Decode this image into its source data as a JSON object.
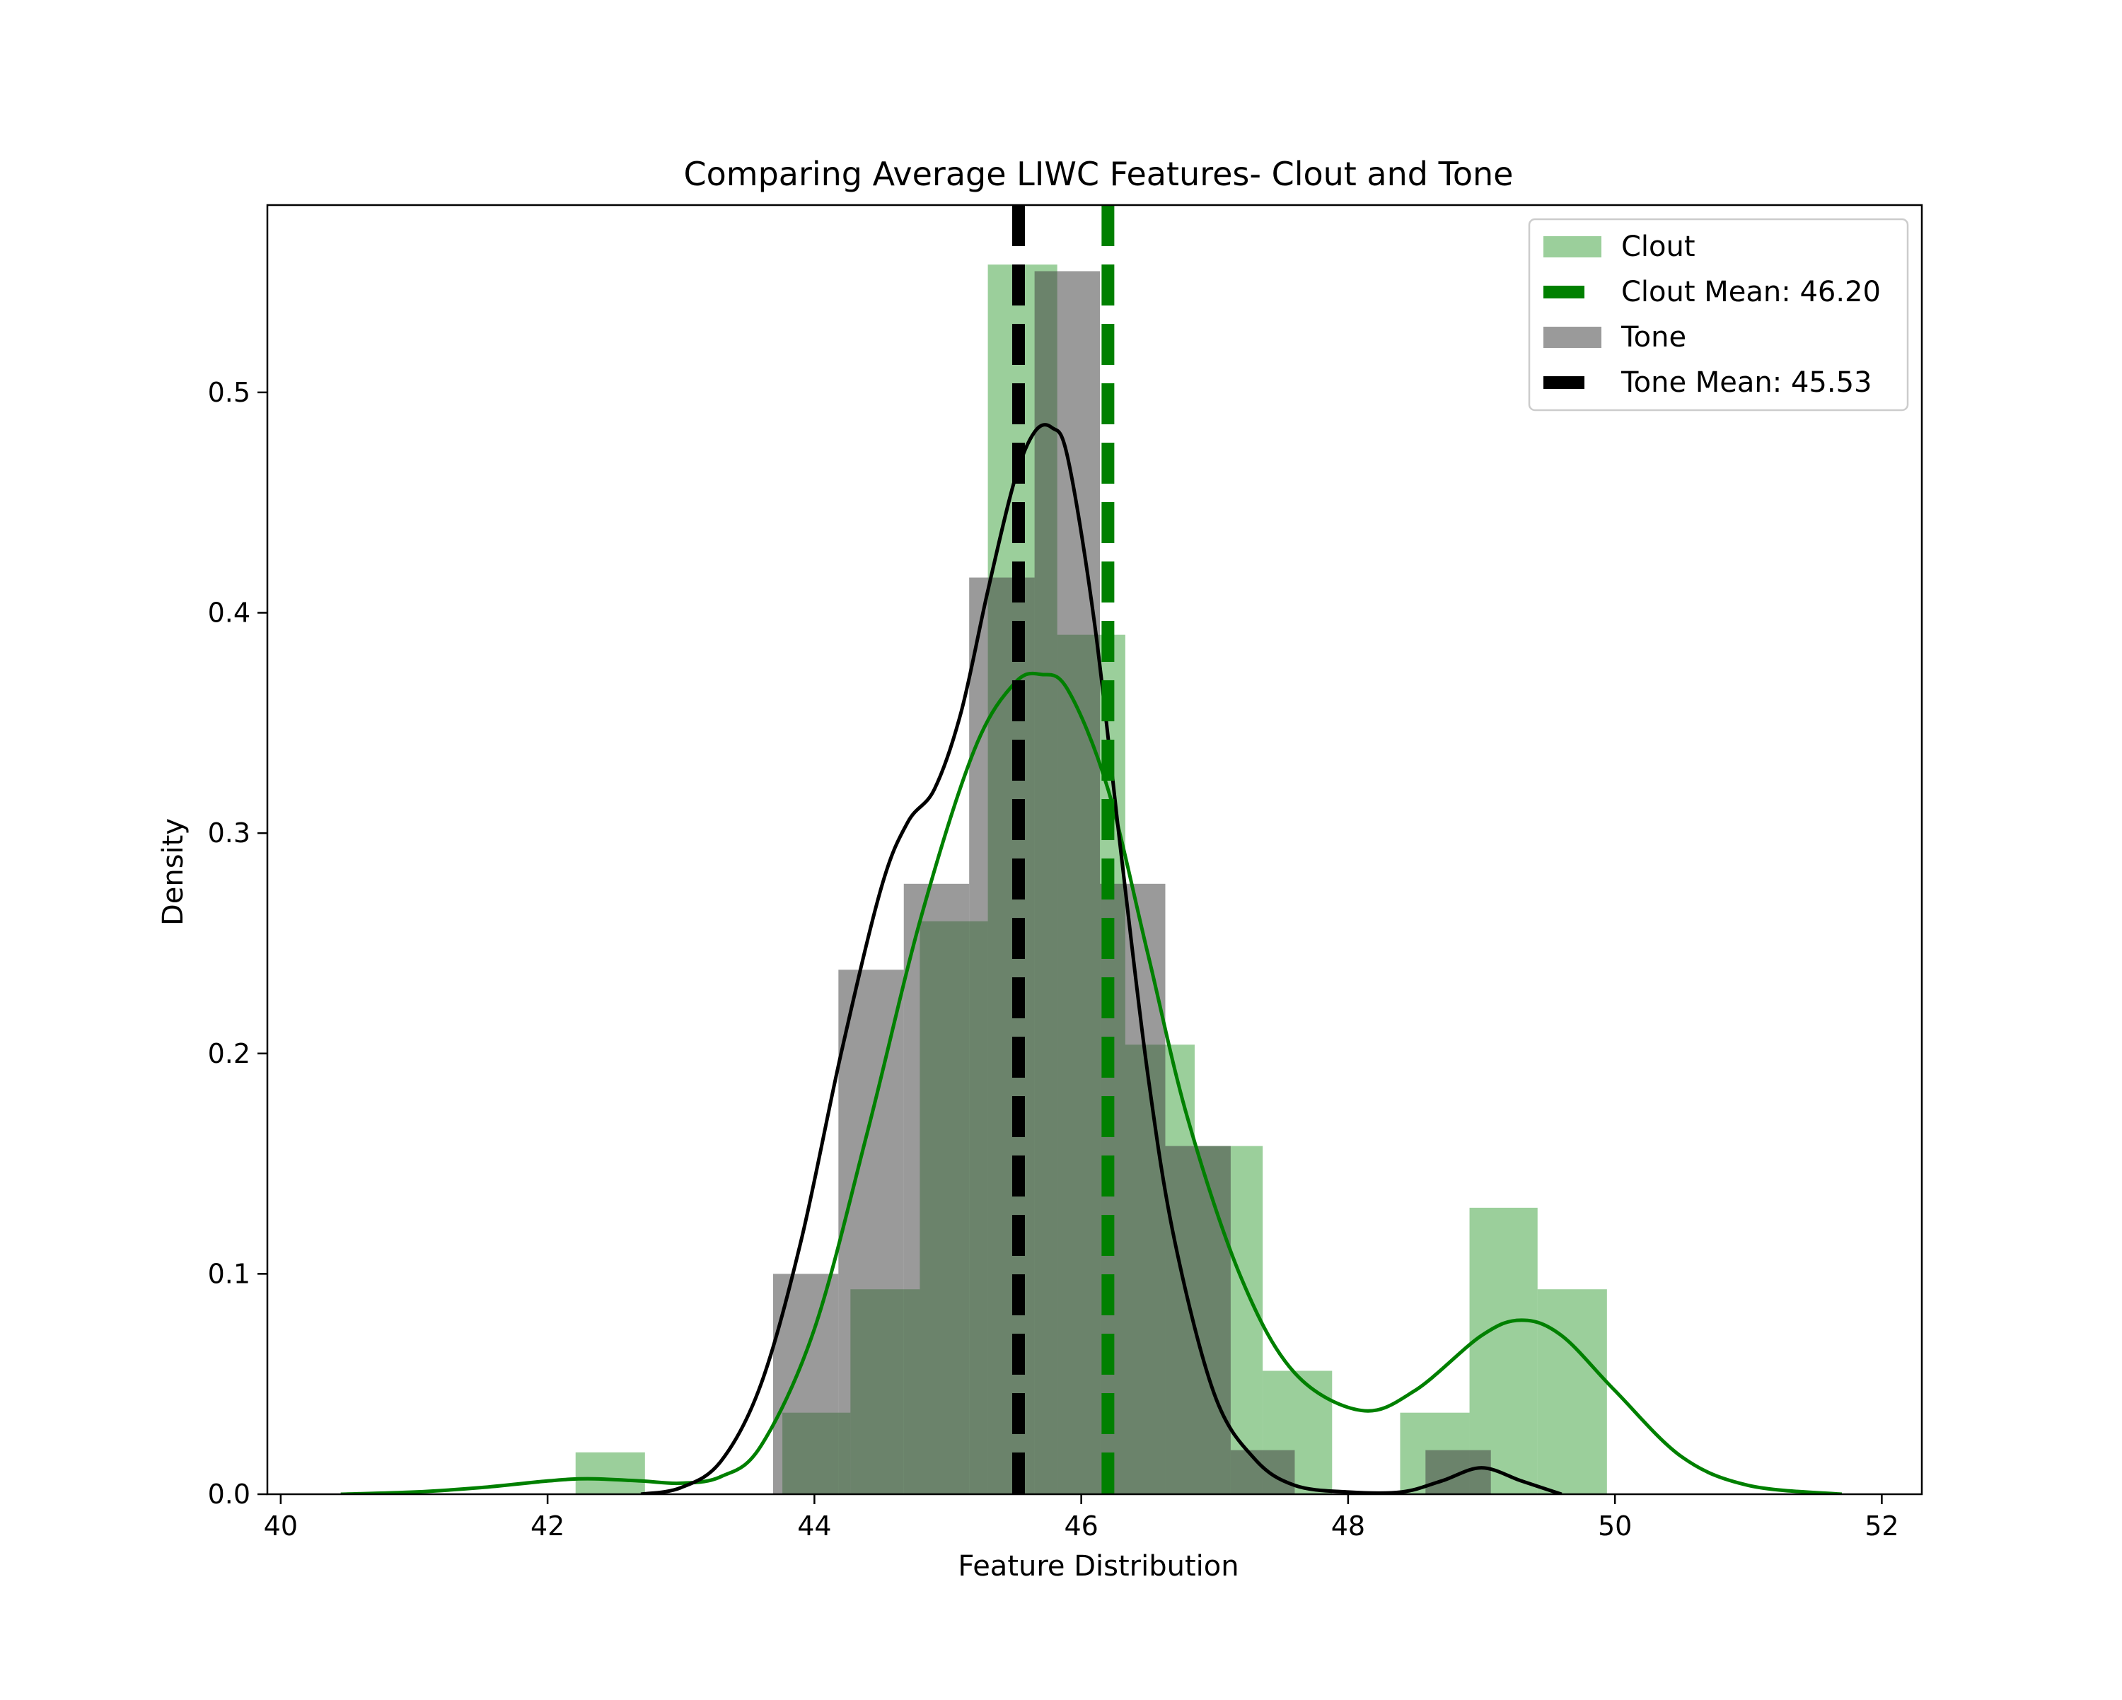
{
  "chart_data": {
    "type": "histogram",
    "title": "Comparing Average LIWC Features- Clout and Tone",
    "xlabel": "Feature Distribution",
    "ylabel": "Density",
    "xlim": [
      39.9,
      52.3
    ],
    "ylim": [
      0,
      0.585
    ],
    "xticks": [
      40,
      42,
      44,
      46,
      48,
      50,
      52
    ],
    "yticks": [
      0.0,
      0.1,
      0.2,
      0.3,
      0.4,
      0.5
    ],
    "ytick_labels": [
      "0.0",
      "0.1",
      "0.2",
      "0.3",
      "0.4",
      "0.5"
    ],
    "grid": false,
    "legend_position": "top-right",
    "series": [
      {
        "name": "Clout",
        "kind": "histogram",
        "color": "#2ca02c",
        "fill_color": "rgba(56,160,56,0.5)",
        "bin_edges": [
          42.21,
          42.73,
          43.24,
          43.76,
          44.27,
          44.79,
          45.3,
          45.82,
          46.33,
          46.85,
          47.36,
          47.88,
          48.39,
          48.91,
          49.42,
          49.94
        ],
        "density": [
          0.019,
          0.0,
          0.0,
          0.037,
          0.093,
          0.26,
          0.558,
          0.39,
          0.204,
          0.158,
          0.056,
          0.0,
          0.037,
          0.13,
          0.093
        ]
      },
      {
        "name": "Clout Mean: 46.20",
        "kind": "mean-line",
        "value": 46.2,
        "color": "#008000"
      },
      {
        "name": "Tone",
        "kind": "histogram",
        "color": "#555555",
        "fill_color": "rgba(64,64,64,0.53)",
        "bin_edges": [
          43.69,
          44.18,
          44.67,
          45.16,
          45.65,
          46.14,
          46.63,
          47.12,
          47.6,
          48.09,
          48.58,
          49.07
        ],
        "density": [
          0.1,
          0.238,
          0.277,
          0.416,
          0.555,
          0.277,
          0.158,
          0.02,
          0.0,
          0.0,
          0.02
        ]
      },
      {
        "name": "Tone Mean: 45.53",
        "kind": "mean-line",
        "value": 45.53,
        "color": "#000000"
      }
    ],
    "kde": [
      {
        "series": "Clout",
        "color": "#008000",
        "x": [
          40.45,
          41.0,
          41.5,
          42.0,
          42.3,
          42.7,
          43.0,
          43.3,
          43.6,
          44.0,
          44.4,
          44.8,
          45.2,
          45.5,
          45.7,
          45.9,
          46.2,
          46.5,
          46.8,
          47.2,
          47.6,
          48.1,
          48.5,
          49.0,
          49.3,
          49.6,
          50.0,
          50.5,
          51.0,
          51.7
        ],
        "y": [
          0.0,
          0.001,
          0.003,
          0.006,
          0.007,
          0.006,
          0.005,
          0.008,
          0.022,
          0.075,
          0.165,
          0.262,
          0.338,
          0.368,
          0.372,
          0.365,
          0.32,
          0.245,
          0.17,
          0.098,
          0.055,
          0.038,
          0.047,
          0.072,
          0.079,
          0.072,
          0.047,
          0.017,
          0.004,
          0.0
        ]
      },
      {
        "series": "Tone",
        "color": "#000000",
        "x": [
          42.7,
          43.0,
          43.3,
          43.6,
          43.9,
          44.2,
          44.5,
          44.7,
          44.9,
          45.1,
          45.3,
          45.5,
          45.65,
          45.78,
          45.9,
          46.1,
          46.3,
          46.5,
          46.7,
          47.0,
          47.3,
          47.6,
          48.0,
          48.4,
          48.7,
          49.0,
          49.3,
          49.6
        ],
        "y": [
          0.0,
          0.003,
          0.015,
          0.05,
          0.115,
          0.2,
          0.275,
          0.305,
          0.32,
          0.355,
          0.41,
          0.46,
          0.482,
          0.484,
          0.47,
          0.395,
          0.29,
          0.19,
          0.115,
          0.045,
          0.016,
          0.004,
          0.001,
          0.001,
          0.006,
          0.012,
          0.006,
          0.0
        ]
      }
    ]
  }
}
